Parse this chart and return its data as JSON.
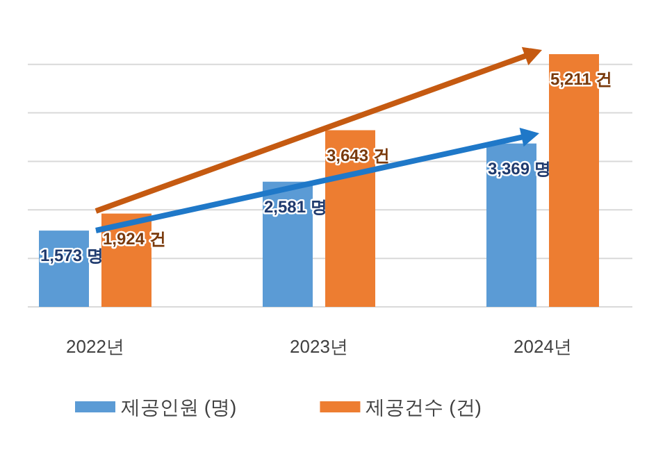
{
  "chart_data": {
    "type": "bar",
    "categories": [
      "2022년",
      "2023년",
      "2024년"
    ],
    "series": [
      {
        "name": "제공인원 (명)",
        "color": "#5b9bd5",
        "values": [
          1573,
          2581,
          3369
        ],
        "value_labels": [
          "1,573 명",
          "2,581 명",
          "3,369 명"
        ]
      },
      {
        "name": "제공건수 (건)",
        "color": "#ed7d31",
        "values": [
          1924,
          3643,
          5211
        ],
        "value_labels": [
          "1,924 건",
          "3,643 건",
          "5,211 건"
        ]
      }
    ],
    "yticks": [
      {
        "value": 0,
        "label": null
      },
      {
        "value": 1000,
        "label": null
      },
      {
        "value": 2000,
        "label": null
      },
      {
        "value": 3000,
        "label": null
      },
      {
        "value": 4000,
        "label": null
      },
      {
        "value": 5000,
        "label": null
      }
    ],
    "grid": "y",
    "legend": "bottom"
  }
}
